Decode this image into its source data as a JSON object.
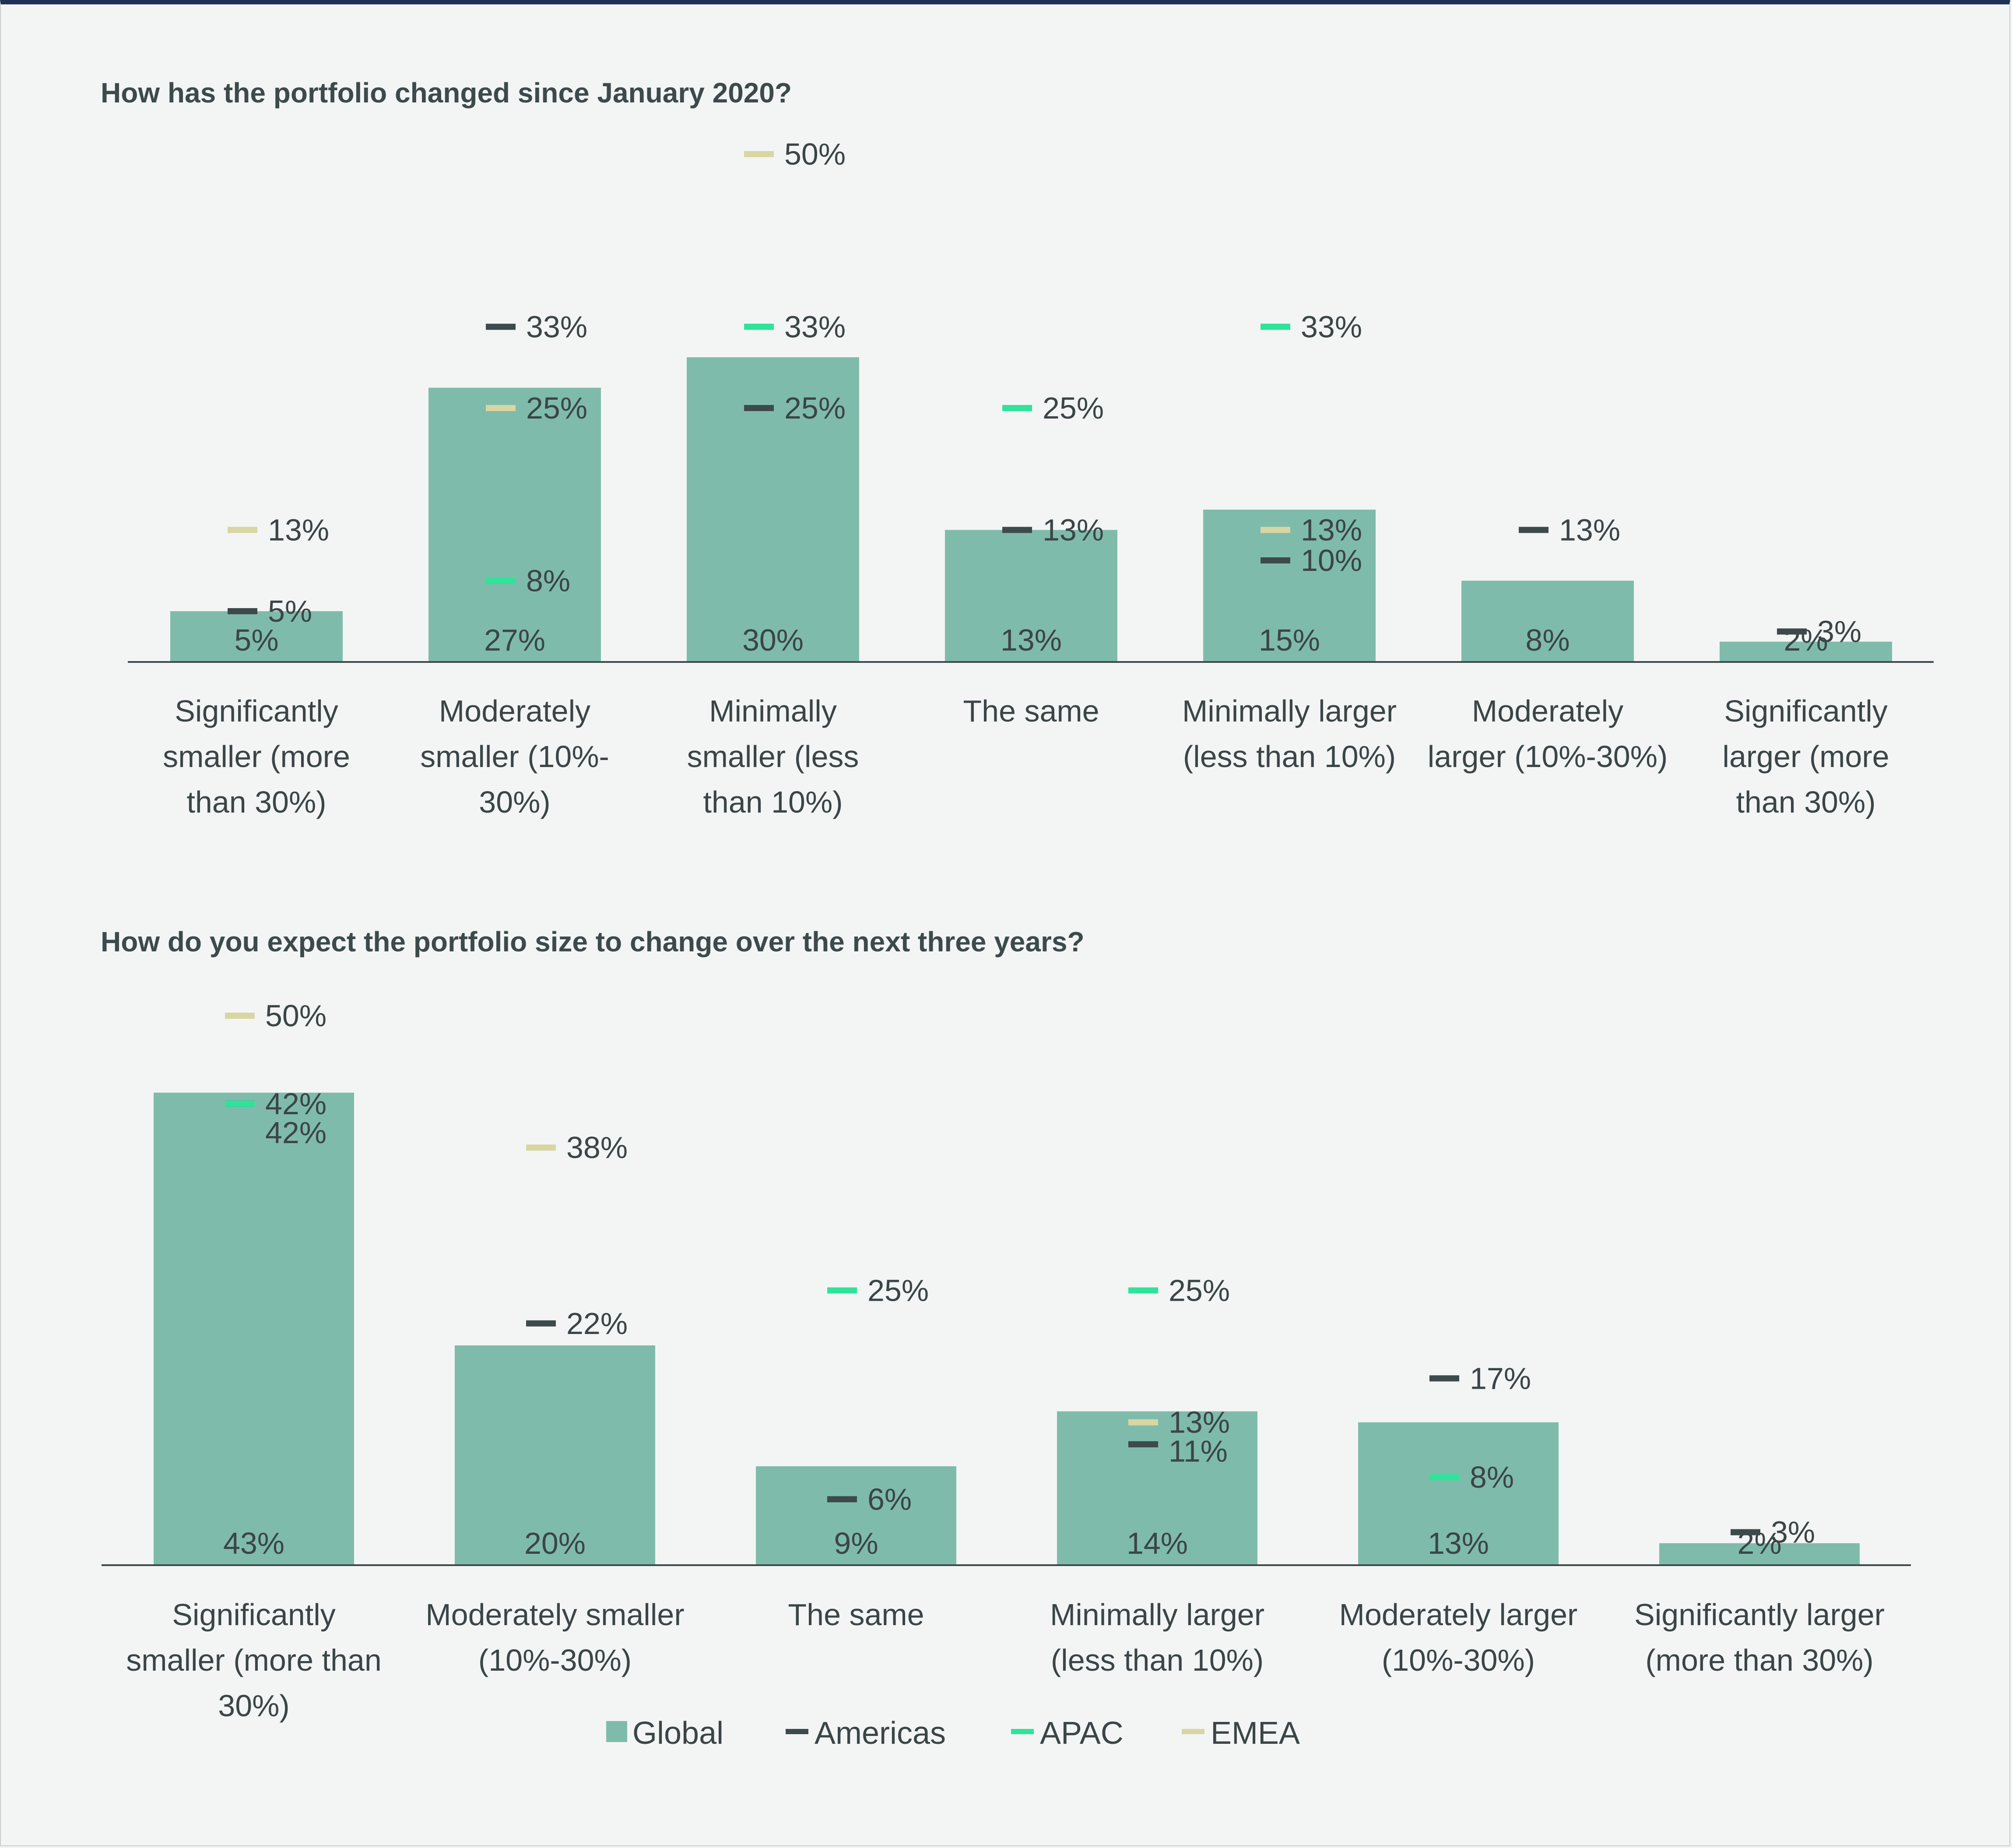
{
  "colors": {
    "Global": "#7fbbab",
    "Americas": "#3d4a4c",
    "APAC": "#2ee39a",
    "EMEA": "#d8d6a2",
    "axis": "#3d4a4c",
    "text": "#3b4547"
  },
  "legend": [
    {
      "name": "Global",
      "shape": "square"
    },
    {
      "name": "Americas",
      "shape": "dash"
    },
    {
      "name": "APAC",
      "shape": "dash"
    },
    {
      "name": "EMEA",
      "shape": "dash"
    }
  ],
  "chart_data": [
    {
      "type": "bar",
      "title": "How has the portfolio changed since January 2020?",
      "ylim": [
        0,
        60
      ],
      "categories": [
        [
          "Significantly",
          "smaller (more",
          "than 30%)"
        ],
        [
          "Moderately",
          "smaller (10%-",
          "30%)"
        ],
        [
          "Minimally",
          "smaller (less",
          "than 10%)"
        ],
        [
          "The same"
        ],
        [
          "Minimally larger",
          "(less than 10%)"
        ],
        [
          "Moderately",
          "larger (10%-30%)"
        ],
        [
          "Significantly",
          "larger (more",
          "than 30%)"
        ]
      ],
      "series": [
        {
          "name": "Global",
          "values": [
            5,
            27,
            30,
            13,
            15,
            8,
            2
          ]
        },
        {
          "name": "Americas",
          "values": [
            5,
            33,
            25,
            13,
            10,
            13,
            3
          ]
        },
        {
          "name": "APAC",
          "values": [
            null,
            8,
            33,
            25,
            33,
            null,
            null
          ]
        },
        {
          "name": "EMEA",
          "values": [
            13,
            25,
            50,
            null,
            13,
            null,
            null
          ]
        }
      ]
    },
    {
      "type": "bar",
      "title": "How do you expect the portfolio size to change over the next three years?",
      "ylim": [
        0,
        60
      ],
      "categories": [
        [
          "Significantly",
          "smaller (more than",
          "30%)"
        ],
        [
          "Moderately smaller",
          "(10%-30%)"
        ],
        [
          "The same"
        ],
        [
          "Minimally  larger",
          "(less than 10%)"
        ],
        [
          "Moderately larger",
          "(10%-30%)"
        ],
        [
          "Significantly larger",
          "(more than 30%)"
        ]
      ],
      "series": [
        {
          "name": "Global",
          "values": [
            43,
            20,
            9,
            14,
            13,
            2
          ]
        },
        {
          "name": "Americas",
          "values": [
            42,
            22,
            6,
            11,
            17,
            3
          ]
        },
        {
          "name": "APAC",
          "values": [
            42,
            null,
            25,
            25,
            8,
            null
          ]
        },
        {
          "name": "EMEA",
          "values": [
            50,
            38,
            null,
            13,
            null,
            null
          ]
        }
      ]
    }
  ]
}
